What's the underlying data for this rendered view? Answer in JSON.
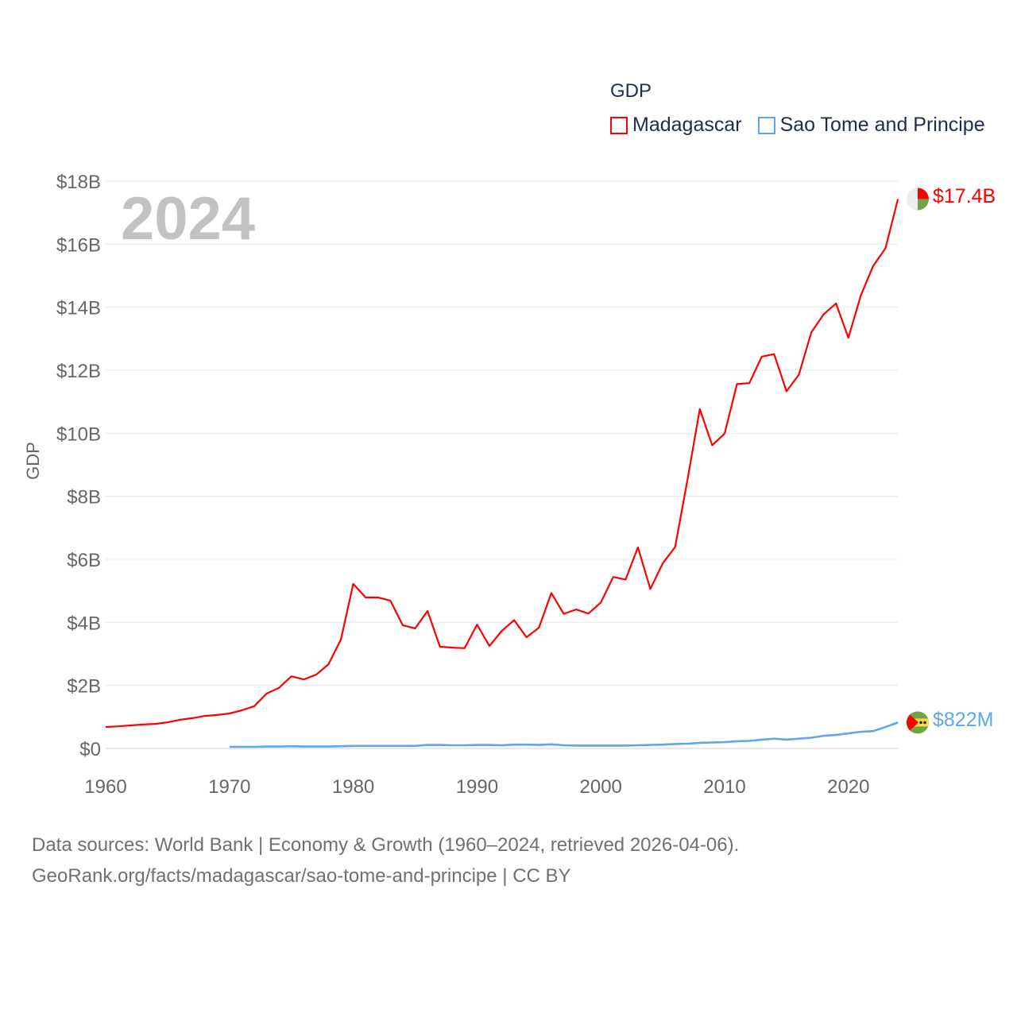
{
  "legend": {
    "title": "GDP",
    "items": [
      {
        "label": "Madagascar",
        "color": "#ff0000"
      },
      {
        "label": "Sao Tome and Principe",
        "color": "#5ea6ee"
      }
    ]
  },
  "watermark_year": "2024",
  "end_labels": {
    "madagascar": "$17.4B",
    "sao_tome": "$822M"
  },
  "footer": {
    "line1": "Data sources: World Bank | Economy & Growth (1960–2024, retrieved 2026-04-06).",
    "line2": "GeoRank.org/facts/madagascar/sao-tome-and-principe | CC BY"
  },
  "chart_data": {
    "type": "line",
    "title": "GDP",
    "xlabel": "",
    "ylabel": "GDP",
    "xlim": [
      1960,
      2024
    ],
    "ylim": [
      0,
      18
    ],
    "unit": "billion USD",
    "grid": true,
    "legend_position": "top-right",
    "x_ticks": [
      1960,
      1970,
      1980,
      1990,
      2000,
      2010,
      2020
    ],
    "x_tick_labels": [
      "1960",
      "1970",
      "1980",
      "1990",
      "2000",
      "2010",
      "2020"
    ],
    "y_ticks": [
      0,
      2,
      4,
      6,
      8,
      10,
      12,
      14,
      16,
      18
    ],
    "y_tick_labels": [
      "$0",
      "$2B",
      "$4B",
      "$6B",
      "$8B",
      "$10B",
      "$12B",
      "$14B",
      "$16B",
      "$18B"
    ],
    "series": [
      {
        "name": "Madagascar",
        "color": "#ff0000",
        "x_start": 1960,
        "values": [
          0.68,
          0.7,
          0.73,
          0.76,
          0.78,
          0.83,
          0.91,
          0.96,
          1.03,
          1.06,
          1.11,
          1.21,
          1.34,
          1.74,
          1.92,
          2.29,
          2.19,
          2.34,
          2.67,
          3.45,
          5.22,
          4.79,
          4.79,
          4.69,
          3.91,
          3.81,
          4.36,
          3.23,
          3.2,
          3.18,
          3.93,
          3.25,
          3.73,
          4.07,
          3.53,
          3.83,
          4.93,
          4.27,
          4.41,
          4.28,
          4.63,
          5.44,
          5.36,
          6.38,
          5.06,
          5.87,
          6.39,
          8.53,
          10.77,
          9.62,
          9.99,
          11.56,
          11.59,
          12.43,
          12.51,
          11.33,
          11.86,
          13.2,
          13.77,
          14.12,
          13.03,
          14.37,
          15.31,
          15.87,
          17.43
        ]
      },
      {
        "name": "Sao Tome and Principe",
        "color": "#5ea6ee",
        "x_start": 1970,
        "values": [
          0.05,
          0.05,
          0.05,
          0.06,
          0.06,
          0.07,
          0.06,
          0.06,
          0.06,
          0.07,
          0.08,
          0.08,
          0.08,
          0.08,
          0.08,
          0.08,
          0.11,
          0.11,
          0.1,
          0.1,
          0.11,
          0.11,
          0.1,
          0.12,
          0.12,
          0.11,
          0.13,
          0.1,
          0.09,
          0.09,
          0.09,
          0.09,
          0.09,
          0.1,
          0.11,
          0.12,
          0.14,
          0.15,
          0.18,
          0.19,
          0.2,
          0.23,
          0.24,
          0.28,
          0.31,
          0.28,
          0.31,
          0.34,
          0.4,
          0.43,
          0.48,
          0.53,
          0.55,
          0.68,
          0.822
        ]
      }
    ]
  }
}
